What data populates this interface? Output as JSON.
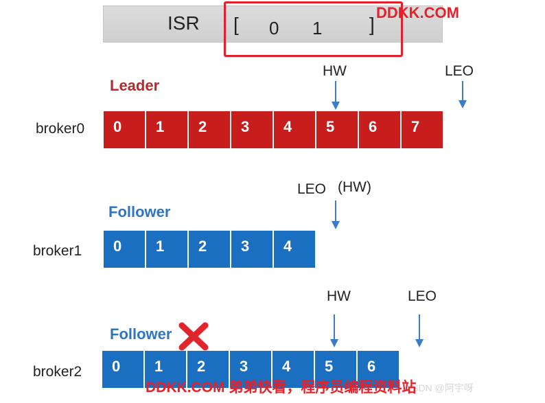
{
  "isr": {
    "label": "ISR",
    "open": "[",
    "close": "]",
    "values": [
      "0",
      "1"
    ]
  },
  "watermark_top": "DDKK.COM",
  "watermark_bottom": "DDKK.COM 弟弟快看，程序员编程资料站",
  "faint_text": "CSDN @阿宇呀",
  "brokers": [
    {
      "name": "broker0",
      "role": "Leader",
      "color": "#c81d1d",
      "offsets": [
        "0",
        "1",
        "2",
        "3",
        "4",
        "5",
        "6",
        "7"
      ],
      "markers": [
        {
          "label": "HW",
          "at_offset": 5
        },
        {
          "label": "LEO",
          "at_offset": 8
        }
      ]
    },
    {
      "name": "broker1",
      "role": "Follower",
      "color": "#1a6fc0",
      "offsets": [
        "0",
        "1",
        "2",
        "3",
        "4"
      ],
      "markers": [
        {
          "label": "LEO",
          "at_offset": 5
        },
        {
          "label": "(HW)",
          "at_offset": 5
        }
      ]
    },
    {
      "name": "broker2",
      "role": "Follower",
      "color": "#1a6fc0",
      "offsets": [
        "0",
        "1",
        "2",
        "3",
        "4",
        "5",
        "6"
      ],
      "markers": [
        {
          "label": "HW",
          "at_offset": 5
        },
        {
          "label": "LEO",
          "at_offset": 7
        }
      ],
      "failed_marker": "x-icon"
    }
  ]
}
